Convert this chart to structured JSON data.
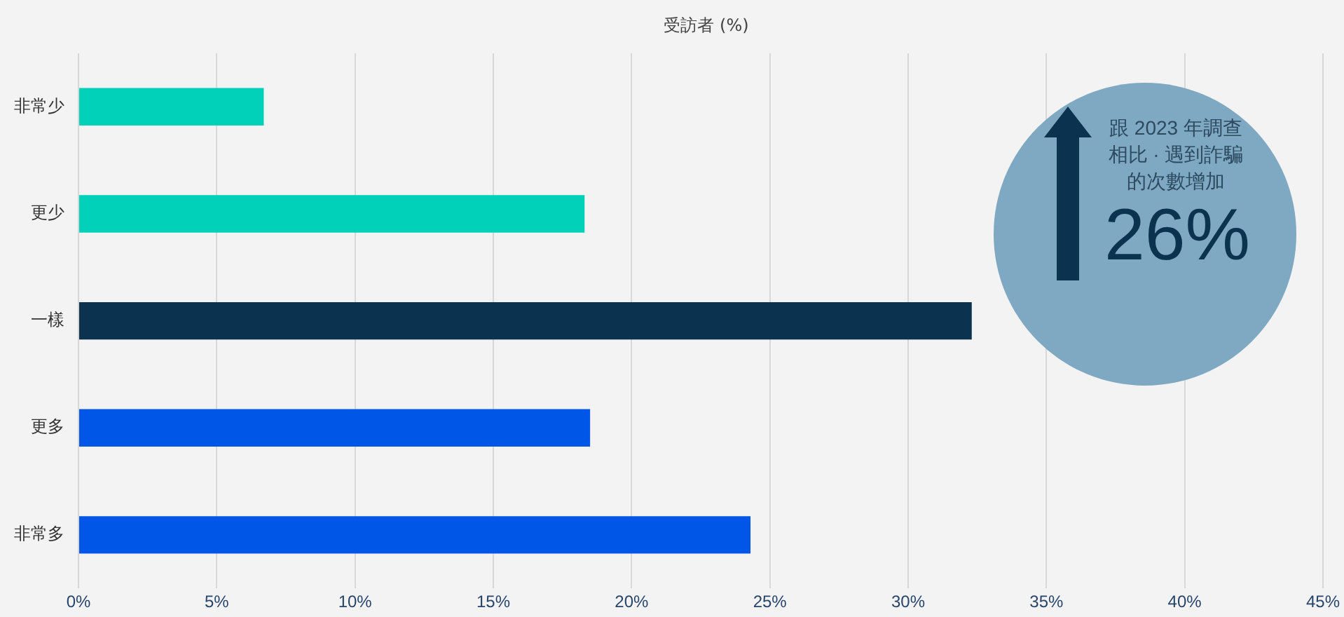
{
  "chart_data": {
    "type": "bar",
    "orientation": "horizontal",
    "xlabel": "受訪者 (%)",
    "categories": [
      "非常少",
      "更少",
      "一樣",
      "更多",
      "非常多"
    ],
    "values": [
      6.7,
      18.3,
      32.3,
      18.5,
      24.3
    ],
    "colors": [
      "#00d1b8",
      "#00d1b8",
      "#0b3350",
      "#0057e7",
      "#0057e7"
    ],
    "xlim": [
      0,
      45
    ],
    "xticks": [
      {
        "value": 0,
        "label": "0%"
      },
      {
        "value": 5,
        "label": "5%"
      },
      {
        "value": 10,
        "label": "10%"
      },
      {
        "value": 15,
        "label": "15%"
      },
      {
        "value": 20,
        "label": "20%"
      },
      {
        "value": 25,
        "label": "25%"
      },
      {
        "value": 30,
        "label": "30%"
      },
      {
        "value": 35,
        "label": "35%"
      },
      {
        "value": 40,
        "label": "40%"
      },
      {
        "value": 45,
        "label": "45%"
      }
    ],
    "grid": "x",
    "legend": false,
    "annotations": [
      "跟 2023 年調查相比 · 遇到詐騙的次數增加",
      "26%"
    ]
  }
}
